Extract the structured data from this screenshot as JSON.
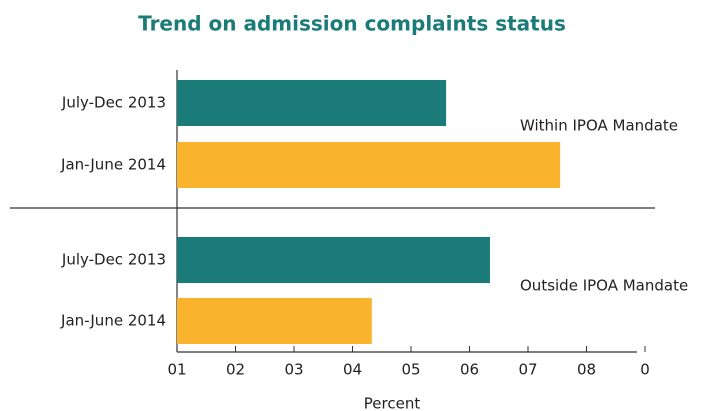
{
  "chart_data": {
    "type": "bar",
    "orientation": "horizontal",
    "title": "Trend on admission complaints status",
    "categories": [
      "July-Dec 2013",
      "Jan-June 2014",
      "July-Dec 2013",
      "Jan-June 2014"
    ],
    "values": [
      46,
      65.5,
      53.5,
      33.3
    ],
    "colors": [
      "#1a7b79",
      "#f9b32c",
      "#1a7b79",
      "#f9b32c"
    ],
    "annotations": [
      "Within IPOA Mandate",
      "Outside IPOA Mandate"
    ],
    "xlabel": "Percent",
    "xlim": [
      0,
      80
    ],
    "xticks": [
      {
        "value": 0,
        "label": "01"
      },
      {
        "value": 10,
        "label": "02"
      },
      {
        "value": 20,
        "label": "03"
      },
      {
        "value": 30,
        "label": "04"
      },
      {
        "value": 40,
        "label": "05"
      },
      {
        "value": 50,
        "label": "06"
      },
      {
        "value": 60,
        "label": "07"
      },
      {
        "value": 70,
        "label": "08"
      },
      {
        "value": 80,
        "label": "0"
      }
    ]
  }
}
